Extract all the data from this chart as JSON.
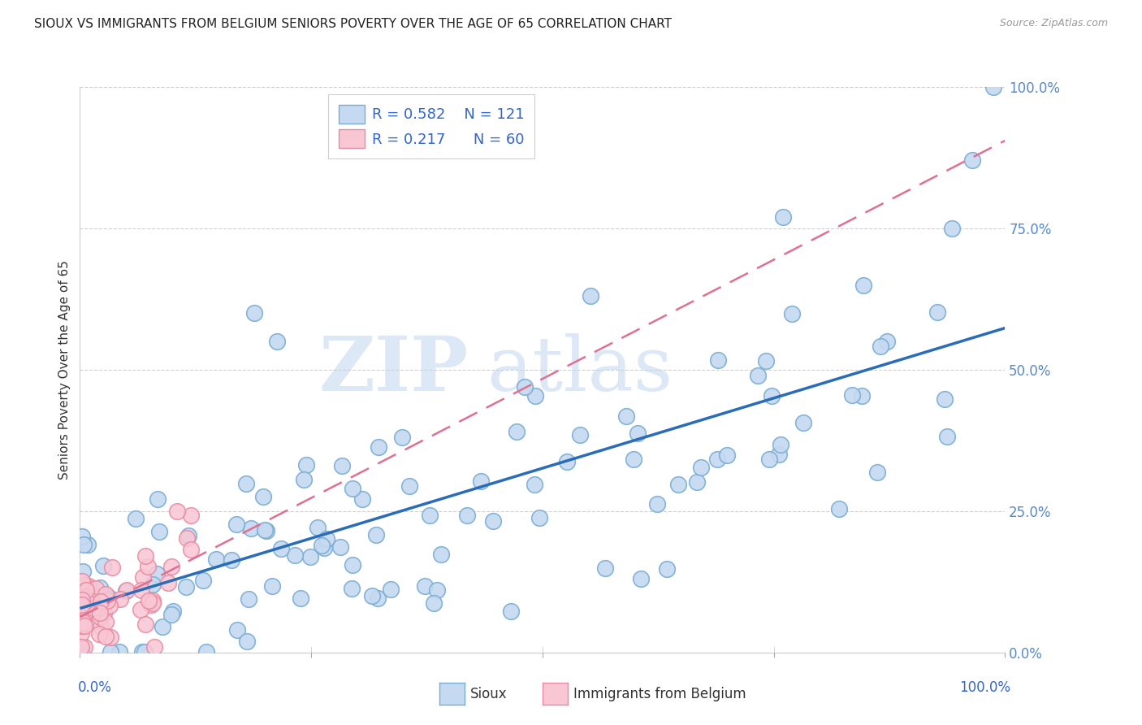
{
  "title": "SIOUX VS IMMIGRANTS FROM BELGIUM SENIORS POVERTY OVER THE AGE OF 65 CORRELATION CHART",
  "source": "Source: ZipAtlas.com",
  "ylabel": "Seniors Poverty Over the Age of 65",
  "legend_r": [
    "R = 0.582",
    "R = 0.217"
  ],
  "legend_n": [
    "N = 121",
    "N = 60"
  ],
  "sioux_color": "#c5d9f0",
  "sioux_edge_color": "#7aadd4",
  "sioux_line_color": "#2b6cb8",
  "belgium_color": "#f9c6d4",
  "belgium_edge_color": "#e88aa0",
  "belgium_line_color": "#e07090",
  "watermark_color": "#dce8f5",
  "title_color": "#222222",
  "tick_color": "#5588cc",
  "grid_color": "#d0d0d0",
  "legend_text_color": "#3366cc",
  "bottom_label_color": "#3366cc",
  "source_color": "#999999"
}
